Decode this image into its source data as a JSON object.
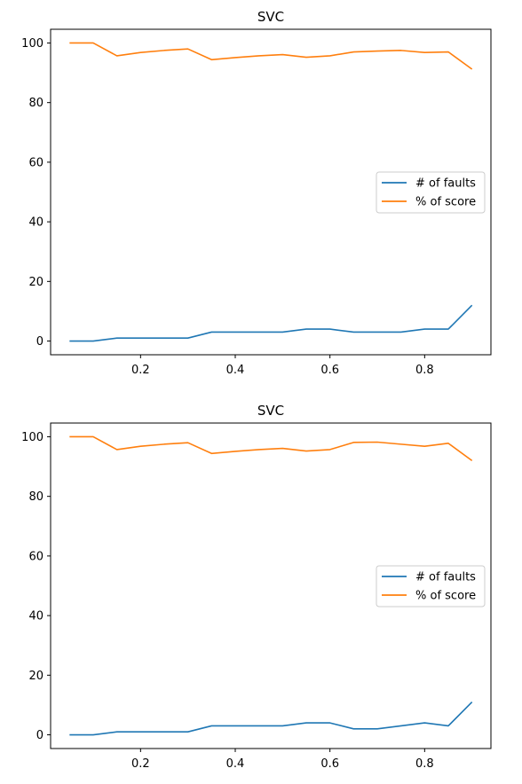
{
  "chart_data": [
    {
      "type": "line",
      "title": "SVC",
      "xlabel": "",
      "ylabel": "",
      "x": [
        0.05,
        0.1,
        0.15,
        0.2,
        0.25,
        0.3,
        0.35,
        0.4,
        0.45,
        0.5,
        0.55,
        0.6,
        0.65,
        0.7,
        0.75,
        0.8,
        0.85,
        0.9
      ],
      "xlim": [
        0.01,
        0.94
      ],
      "ylim": [
        -4.6,
        104.6
      ],
      "xticks": [
        0.2,
        0.4,
        0.6,
        0.8
      ],
      "xtick_labels": [
        "0.2",
        "0.4",
        "0.6",
        "0.8"
      ],
      "yticks": [
        0,
        20,
        40,
        60,
        80,
        100
      ],
      "ytick_labels": [
        "0",
        "20",
        "40",
        "60",
        "80",
        "100"
      ],
      "grid": false,
      "legend_position": "center-right",
      "series": [
        {
          "name": "# of faults",
          "color": "#1f77b4",
          "values": [
            0,
            0,
            1,
            1,
            1,
            1,
            3,
            3,
            3,
            3,
            4,
            4,
            3,
            3,
            3,
            4,
            4,
            12
          ]
        },
        {
          "name": "% of score",
          "color": "#ff7f0e",
          "values": [
            100,
            100,
            95.7,
            96.8,
            97.5,
            98,
            94.4,
            95.1,
            95.7,
            96.1,
            95.2,
            95.7,
            97,
            97.3,
            97.5,
            96.8,
            97,
            91.2
          ]
        }
      ]
    },
    {
      "type": "line",
      "title": "SVC",
      "xlabel": "",
      "ylabel": "",
      "x": [
        0.05,
        0.1,
        0.15,
        0.2,
        0.25,
        0.3,
        0.35,
        0.4,
        0.45,
        0.5,
        0.55,
        0.6,
        0.65,
        0.7,
        0.75,
        0.8,
        0.85,
        0.9
      ],
      "xlim": [
        0.01,
        0.94
      ],
      "ylim": [
        -4.6,
        104.6
      ],
      "xticks": [
        0.2,
        0.4,
        0.6,
        0.8
      ],
      "xtick_labels": [
        "0.2",
        "0.4",
        "0.6",
        "0.8"
      ],
      "yticks": [
        0,
        20,
        40,
        60,
        80,
        100
      ],
      "ytick_labels": [
        "0",
        "20",
        "40",
        "60",
        "80",
        "100"
      ],
      "grid": false,
      "legend_position": "center-right",
      "series": [
        {
          "name": "# of faults",
          "color": "#1f77b4",
          "values": [
            0,
            0,
            1,
            1,
            1,
            1,
            3,
            3,
            3,
            3,
            4,
            4,
            2,
            2,
            3,
            4,
            3,
            11
          ]
        },
        {
          "name": "% of score",
          "color": "#ff7f0e",
          "values": [
            100,
            100,
            95.7,
            96.8,
            97.5,
            98,
            94.4,
            95.1,
            95.7,
            96.1,
            95.2,
            95.7,
            98.1,
            98.2,
            97.5,
            96.8,
            97.8,
            92
          ]
        }
      ]
    }
  ]
}
